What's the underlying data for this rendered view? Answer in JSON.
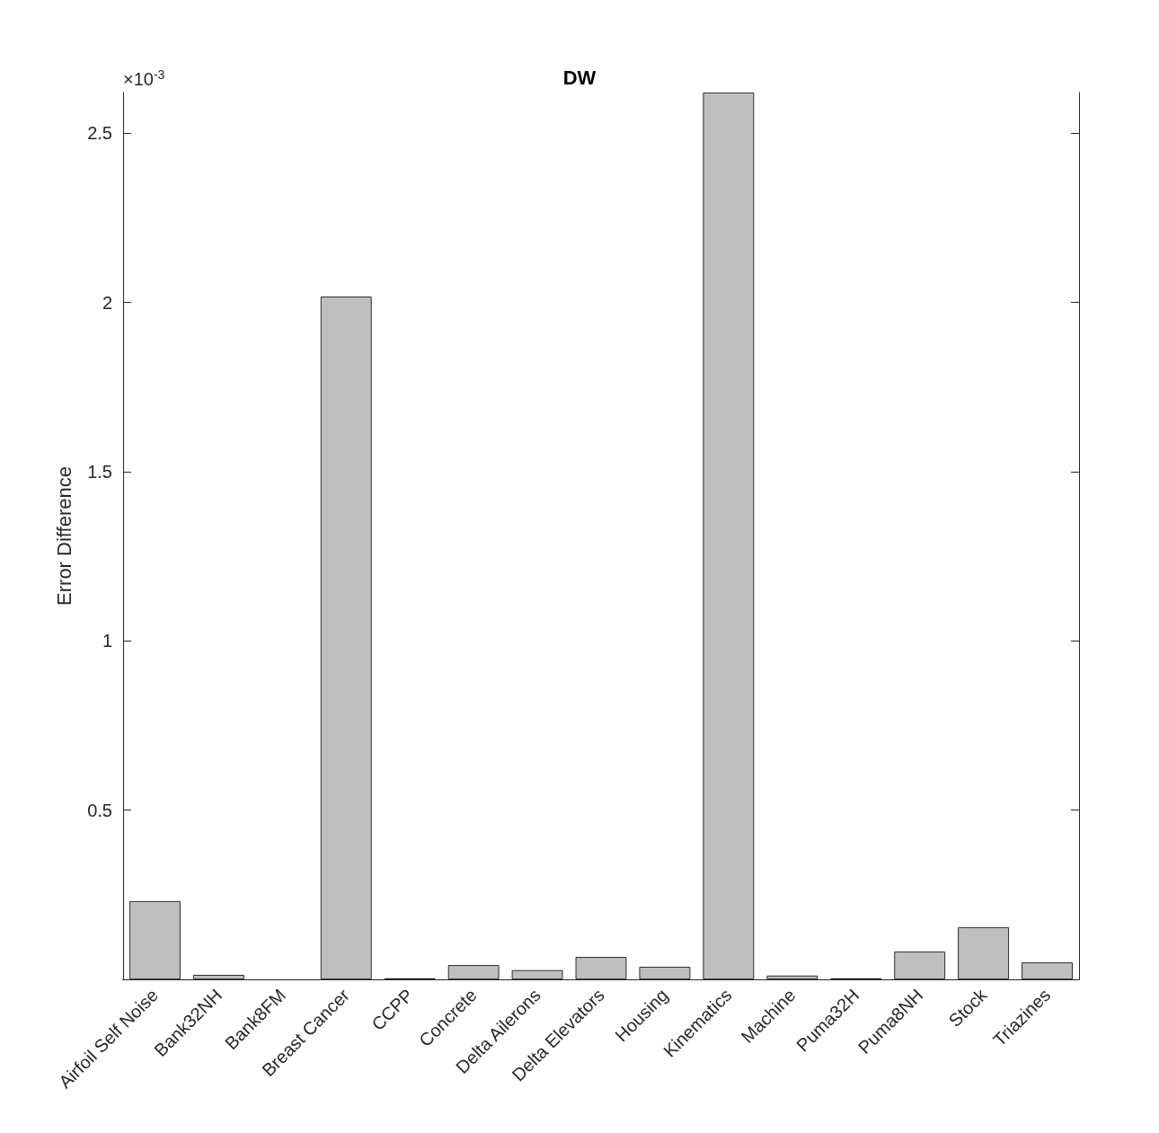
{
  "chart_data": {
    "type": "bar",
    "title": "DW",
    "ylabel": "Error Difference",
    "annotations": [
      "×10$^{-3}$"
    ],
    "categories": [
      "Airfoil Self Noise",
      "Bank32NH",
      "Bank8FM",
      "Breast Cancer",
      "CCPP",
      "Concrete",
      "Delta Ailerons",
      "Delta Elevators",
      "Housing",
      "Kinematics",
      "Machine",
      "Puma32H",
      "Puma8NH",
      "Stock",
      "Triazines"
    ],
    "values": [
      0.231,
      0.013,
      null,
      2.017,
      0.003,
      0.042,
      0.027,
      0.066,
      0.037,
      2.62,
      0.011,
      0.003,
      0.082,
      0.154,
      0.05
    ],
    "color": "#bfbfbf",
    "ylim": [
      0,
      2.62
    ],
    "yticks": [
      0.5,
      1,
      1.5,
      2,
      2.5
    ],
    "grid": false
  }
}
